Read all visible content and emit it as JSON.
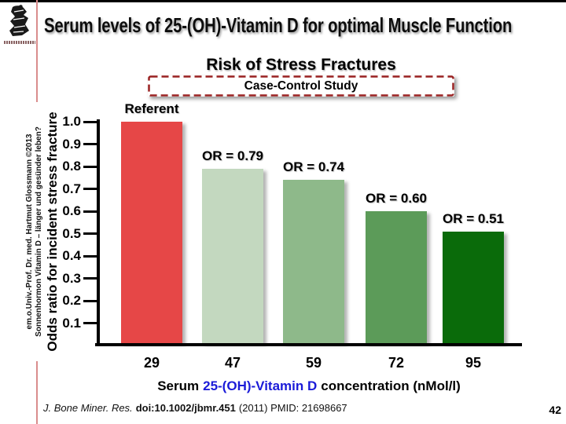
{
  "slide": {
    "title": "Serum levels of 25-(OH)-Vitamin D for optimal Muscle Function",
    "sidebar_line1": "em.o.Univ.-Prof. Dr. med. Hartmut Glossmann ©2013",
    "sidebar_line2": "Sonnenhormon Vitamin D – länger und gesünder leben?",
    "logo": {
      "icon": "crest-logo"
    },
    "footer": {
      "journal": "J. Bone Miner. Res.",
      "doi": "doi:10.1002/jbmr.451",
      "rest": "(2011) PMID: 21698667"
    },
    "page_number": "42"
  },
  "colors": {
    "box_border": "#992121",
    "accent_line": "#da8d8d",
    "axis": "#000000"
  },
  "chart_data": {
    "type": "bar",
    "title": "Risk of Stress Fractures",
    "subtitle": "Case-Control Study",
    "categories": [
      29,
      47,
      59,
      72,
      95
    ],
    "values": [
      1.0,
      0.79,
      0.74,
      0.6,
      0.51
    ],
    "bar_labels": [
      "Referent",
      "OR = 0.79",
      "OR = 0.74",
      "OR = 0.60",
      "OR = 0.51"
    ],
    "bar_colors": [
      "#e64747",
      "#c3d8bf",
      "#8eb98a",
      "#5c9b59",
      "#0a6b0a"
    ],
    "xlabel_prefix": "Serum",
    "xlabel_highlight": "25-(OH)-Vitamin D",
    "xlabel_suffix": "concentration (nMol/l)",
    "xlabel_highlight_color": "#1b1bd8",
    "ylabel": "Odds ratio for incident stress fracture",
    "yticks": [
      1.0,
      0.9,
      0.8,
      0.7,
      0.6,
      0.5,
      0.4,
      0.3,
      0.2,
      0.1
    ],
    "ylim": [
      0,
      1.0
    ],
    "grid": false,
    "legend": null
  }
}
